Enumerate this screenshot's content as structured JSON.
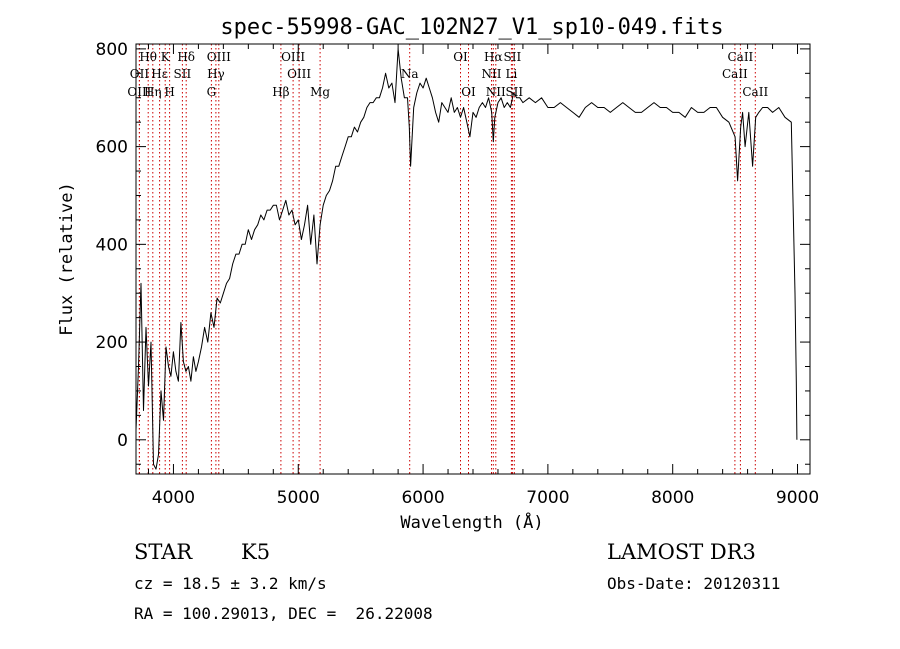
{
  "chart_data": {
    "type": "line",
    "title": "spec-55998-GAC_102N27_V1_sp10-049.fits",
    "xlabel": "Wavelength (Å)",
    "ylabel": "Flux (relative)",
    "xlim": [
      3700,
      9100
    ],
    "ylim": [
      -70,
      810
    ],
    "xticks": [
      4000,
      5000,
      6000,
      7000,
      8000,
      9000
    ],
    "yticks": [
      0,
      200,
      400,
      600,
      800
    ],
    "series": [
      {
        "name": "flux",
        "x": [
          3700,
          3720,
          3740,
          3760,
          3780,
          3800,
          3820,
          3840,
          3860,
          3880,
          3900,
          3920,
          3940,
          3960,
          3980,
          4000,
          4020,
          4040,
          4060,
          4080,
          4100,
          4120,
          4140,
          4160,
          4180,
          4200,
          4225,
          4250,
          4275,
          4300,
          4325,
          4350,
          4375,
          4400,
          4425,
          4450,
          4475,
          4500,
          4525,
          4550,
          4575,
          4600,
          4625,
          4650,
          4675,
          4700,
          4725,
          4750,
          4775,
          4800,
          4825,
          4850,
          4875,
          4900,
          4925,
          4950,
          4975,
          5000,
          5025,
          5050,
          5075,
          5100,
          5125,
          5150,
          5175,
          5200,
          5225,
          5250,
          5275,
          5300,
          5325,
          5350,
          5375,
          5400,
          5425,
          5450,
          5475,
          5500,
          5525,
          5550,
          5575,
          5600,
          5625,
          5650,
          5675,
          5700,
          5725,
          5750,
          5775,
          5800,
          5825,
          5850,
          5875,
          5890,
          5900,
          5925,
          5950,
          5975,
          6000,
          6025,
          6050,
          6075,
          6100,
          6125,
          6150,
          6175,
          6200,
          6225,
          6250,
          6275,
          6300,
          6325,
          6350,
          6375,
          6400,
          6425,
          6450,
          6475,
          6500,
          6525,
          6550,
          6563,
          6575,
          6600,
          6625,
          6650,
          6675,
          6700,
          6725,
          6750,
          6775,
          6800,
          6850,
          6900,
          6950,
          7000,
          7050,
          7100,
          7150,
          7200,
          7250,
          7300,
          7350,
          7400,
          7450,
          7500,
          7550,
          7600,
          7650,
          7700,
          7750,
          7800,
          7850,
          7900,
          7950,
          8000,
          8050,
          8100,
          8150,
          8200,
          8250,
          8300,
          8350,
          8400,
          8450,
          8500,
          8520,
          8545,
          8560,
          8580,
          8610,
          8640,
          8665,
          8690,
          8720,
          8760,
          8800,
          8850,
          8900,
          8950,
          8980,
          8990,
          8995
        ],
        "y": [
          20,
          150,
          320,
          60,
          230,
          110,
          200,
          -50,
          -60,
          -30,
          100,
          40,
          190,
          150,
          130,
          180,
          140,
          120,
          240,
          160,
          140,
          150,
          120,
          170,
          140,
          160,
          190,
          230,
          200,
          260,
          230,
          290,
          280,
          300,
          320,
          330,
          360,
          380,
          380,
          400,
          400,
          430,
          410,
          430,
          440,
          460,
          450,
          470,
          470,
          480,
          480,
          450,
          470,
          490,
          460,
          470,
          440,
          450,
          410,
          440,
          480,
          400,
          460,
          360,
          440,
          480,
          500,
          510,
          530,
          560,
          560,
          580,
          600,
          620,
          620,
          640,
          630,
          650,
          660,
          680,
          690,
          690,
          700,
          700,
          720,
          750,
          720,
          730,
          690,
          800,
          740,
          700,
          700,
          640,
          560,
          680,
          710,
          730,
          720,
          740,
          720,
          700,
          670,
          650,
          690,
          680,
          670,
          700,
          670,
          680,
          660,
          680,
          650,
          620,
          670,
          660,
          680,
          690,
          680,
          700,
          670,
          610,
          660,
          690,
          700,
          680,
          690,
          680,
          710,
          700,
          700,
          690,
          700,
          690,
          700,
          680,
          680,
          690,
          680,
          670,
          660,
          680,
          690,
          680,
          680,
          670,
          680,
          690,
          680,
          670,
          670,
          680,
          690,
          680,
          680,
          670,
          670,
          660,
          680,
          670,
          670,
          680,
          680,
          660,
          650,
          620,
          530,
          640,
          670,
          600,
          670,
          560,
          660,
          670,
          680,
          680,
          670,
          680,
          660,
          650,
          300,
          120,
          0
        ]
      }
    ],
    "spectral_lines": [
      {
        "label": "Hθ",
        "wavelength": 3798,
        "row": 1
      },
      {
        "label": "OII",
        "wavelength": 3727,
        "row": 2
      },
      {
        "label": "OIII",
        "wavelength": 3727,
        "row": 3
      },
      {
        "label": "Hε",
        "wavelength": 3889,
        "row": 2
      },
      {
        "label": "Hη",
        "wavelength": 3835,
        "row": 3
      },
      {
        "label": "K",
        "wavelength": 3934,
        "row": 1
      },
      {
        "label": "SII",
        "wavelength": 4072,
        "row": 2
      },
      {
        "label": "H",
        "wavelength": 3969,
        "row": 3
      },
      {
        "label": "Hδ",
        "wavelength": 4102,
        "row": 1
      },
      {
        "label": "OIII",
        "wavelength": 4363,
        "row": 1
      },
      {
        "label": "Hγ",
        "wavelength": 4340,
        "row": 2
      },
      {
        "label": "G",
        "wavelength": 4304,
        "row": 3
      },
      {
        "label": "OIII",
        "wavelength": 4959,
        "row": 1
      },
      {
        "label": "OIII",
        "wavelength": 5007,
        "row": 2
      },
      {
        "label": "Hβ",
        "wavelength": 4861,
        "row": 3
      },
      {
        "label": "Mg",
        "wavelength": 5175,
        "row": 3
      },
      {
        "label": "Na",
        "wavelength": 5893,
        "row": 2
      },
      {
        "label": "OI",
        "wavelength": 6300,
        "row": 1
      },
      {
        "label": "OI",
        "wavelength": 6364,
        "row": 3
      },
      {
        "label": "Hα",
        "wavelength": 6563,
        "row": 1
      },
      {
        "label": "NII",
        "wavelength": 6548,
        "row": 2
      },
      {
        "label": "NII",
        "wavelength": 6583,
        "row": 3
      },
      {
        "label": "SII",
        "wavelength": 6716,
        "row": 1
      },
      {
        "label": "Li",
        "wavelength": 6708,
        "row": 2
      },
      {
        "label": "SII",
        "wavelength": 6731,
        "row": 3
      },
      {
        "label": "CaII",
        "wavelength": 8542,
        "row": 1
      },
      {
        "label": "CaII",
        "wavelength": 8498,
        "row": 2
      },
      {
        "label": "CaII",
        "wavelength": 8662,
        "row": 3
      }
    ]
  },
  "info": {
    "object_class": "STAR",
    "subclass": "K5",
    "redshift": "cz = 18.5 ± 3.2 km/s",
    "coords": "RA = 100.29013, DEC =  26.22008",
    "survey": "LAMOST DR3",
    "obs_date": "Obs-Date: 20120311"
  },
  "colors": {
    "line_marker": "#cc0000",
    "spectrum": "#000000"
  }
}
